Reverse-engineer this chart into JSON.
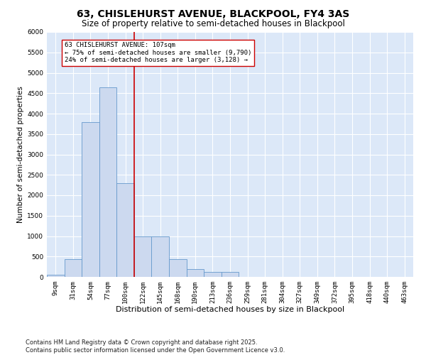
{
  "title1": "63, CHISLEHURST AVENUE, BLACKPOOL, FY4 3AS",
  "title2": "Size of property relative to semi-detached houses in Blackpool",
  "xlabel": "Distribution of semi-detached houses by size in Blackpool",
  "ylabel": "Number of semi-detached properties",
  "categories": [
    "9sqm",
    "31sqm",
    "54sqm",
    "77sqm",
    "100sqm",
    "122sqm",
    "145sqm",
    "168sqm",
    "190sqm",
    "213sqm",
    "236sqm",
    "259sqm",
    "281sqm",
    "304sqm",
    "327sqm",
    "349sqm",
    "372sqm",
    "395sqm",
    "418sqm",
    "440sqm",
    "463sqm"
  ],
  "values": [
    50,
    430,
    3800,
    4650,
    2300,
    1000,
    1000,
    430,
    200,
    130,
    120,
    0,
    0,
    0,
    0,
    0,
    0,
    0,
    0,
    0,
    0
  ],
  "bar_color": "#ccd9ef",
  "bar_edge_color": "#6699cc",
  "vline_x": 4.5,
  "vline_color": "#cc0000",
  "annotation_text": "63 CHISLEHURST AVENUE: 107sqm\n← 75% of semi-detached houses are smaller (9,790)\n24% of semi-detached houses are larger (3,128) →",
  "annotation_box_color": "#ffffff",
  "annotation_box_edge": "#cc0000",
  "ylim": [
    0,
    6000
  ],
  "yticks": [
    0,
    500,
    1000,
    1500,
    2000,
    2500,
    3000,
    3500,
    4000,
    4500,
    5000,
    5500,
    6000
  ],
  "background_color": "#dce8f8",
  "grid_color": "#ffffff",
  "fig_background": "#ffffff",
  "footer": "Contains HM Land Registry data © Crown copyright and database right 2025.\nContains public sector information licensed under the Open Government Licence v3.0.",
  "title1_fontsize": 10,
  "title2_fontsize": 8.5,
  "xlabel_fontsize": 8,
  "ylabel_fontsize": 7.5,
  "tick_fontsize": 6.5,
  "annot_fontsize": 6.5,
  "footer_fontsize": 6
}
